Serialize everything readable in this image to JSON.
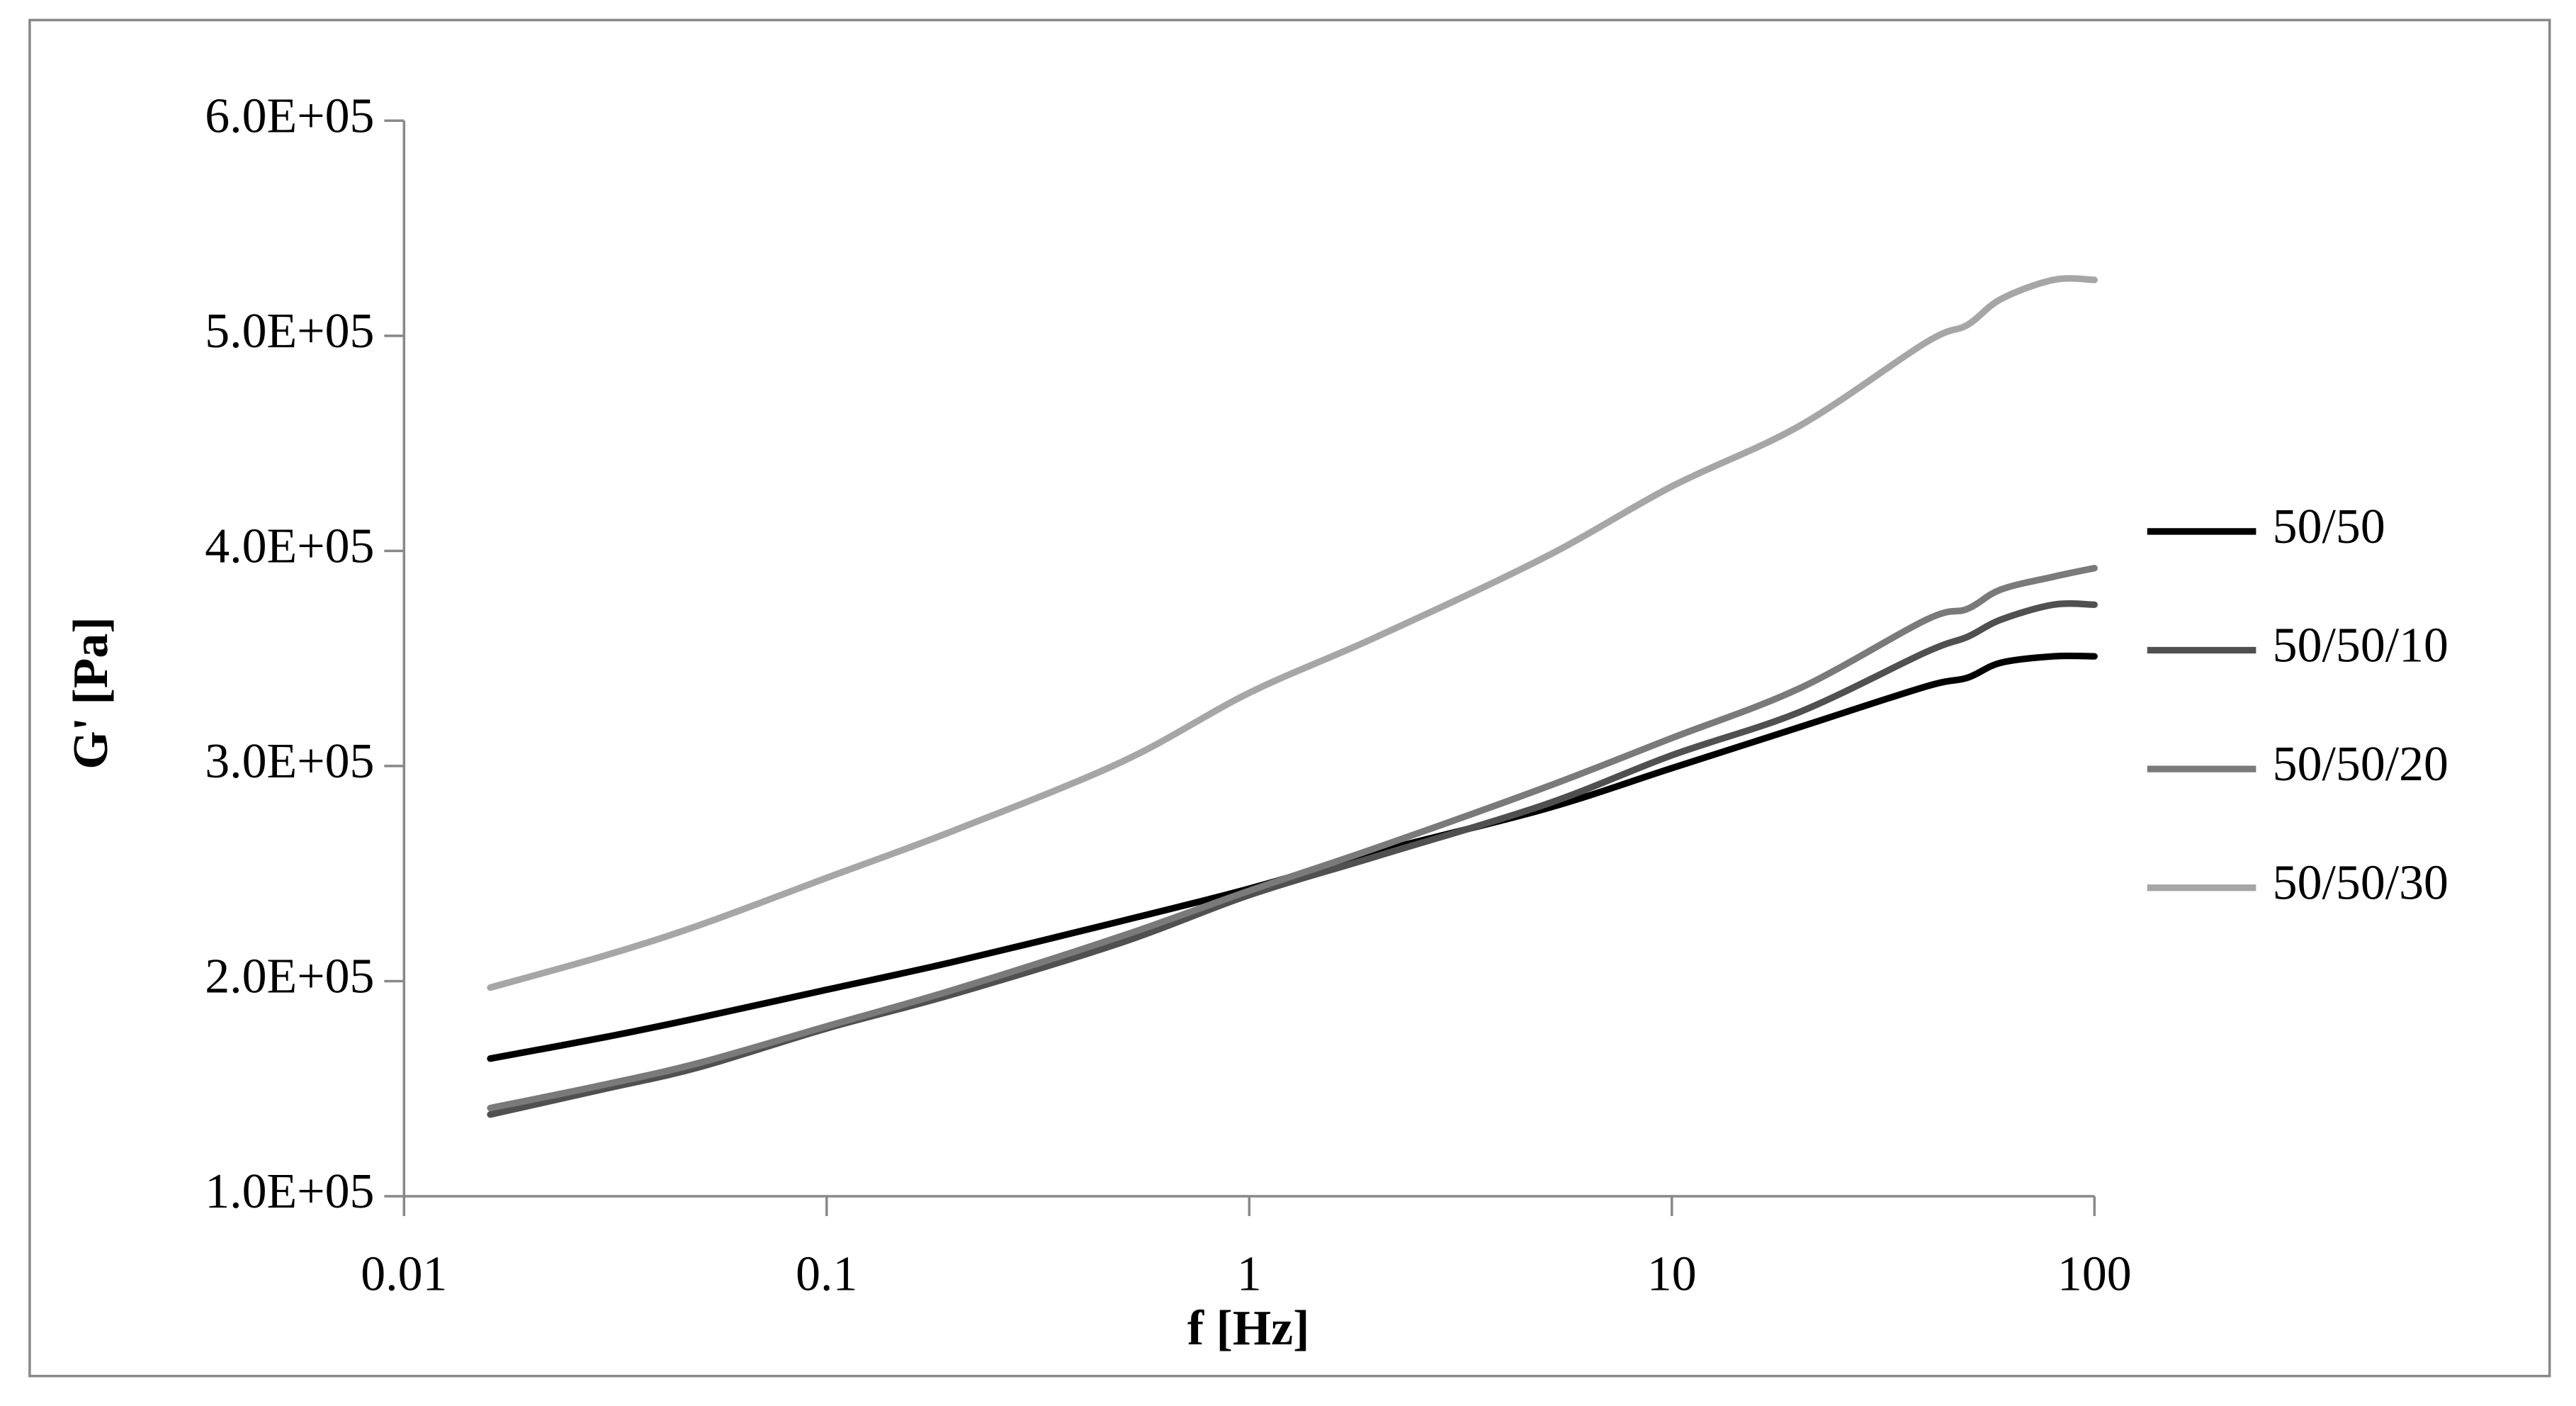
{
  "chart_data": {
    "type": "line",
    "x_label": "f [Hz]",
    "y_label": "G' [Pa]",
    "x_log": true,
    "xlim": [
      0.01,
      100
    ],
    "xticks": [
      0.01,
      0.1,
      1,
      10,
      100
    ],
    "ylim": [
      100000,
      600000
    ],
    "yticks": [
      {
        "value": 100000,
        "label": "1.0E+05"
      },
      {
        "value": 200000,
        "label": "2.0E+05"
      },
      {
        "value": 300000,
        "label": "3.0E+05"
      },
      {
        "value": 400000,
        "label": "4.0E+05"
      },
      {
        "value": 500000,
        "label": "5.0E+05"
      },
      {
        "value": 600000,
        "label": "6.0E+05"
      }
    ],
    "legend": "right",
    "x": [
      0.016,
      0.03,
      0.05,
      0.1,
      0.2,
      0.5,
      1,
      2,
      5,
      10,
      20,
      40,
      50,
      60,
      80,
      100
    ],
    "series": [
      {
        "name": "50/50",
        "color": "#000000",
        "values": [
          164000,
          174000,
          183000,
          196000,
          209000,
          228000,
          243000,
          260000,
          280000,
          299000,
          318000,
          337000,
          341000,
          348000,
          351000,
          351000
        ]
      },
      {
        "name": "50/50/10",
        "color": "#505050",
        "values": [
          138000,
          150000,
          160000,
          178000,
          194000,
          218000,
          240000,
          258000,
          282000,
          305000,
          325000,
          353000,
          360000,
          368000,
          375000,
          375000
        ]
      },
      {
        "name": "50/50/20",
        "color": "#7a7a7a",
        "values": [
          141000,
          152000,
          162000,
          179000,
          196000,
          221000,
          242000,
          262000,
          290000,
          313000,
          336000,
          368000,
          373000,
          382000,
          388000,
          392000
        ]
      },
      {
        "name": "50/50/30",
        "color": "#a6a6a6",
        "values": [
          197000,
          212000,
          226000,
          248000,
          270000,
          302000,
          334000,
          360000,
          397000,
          430000,
          458000,
          497000,
          505000,
          517000,
          526000,
          526000
        ]
      }
    ]
  }
}
